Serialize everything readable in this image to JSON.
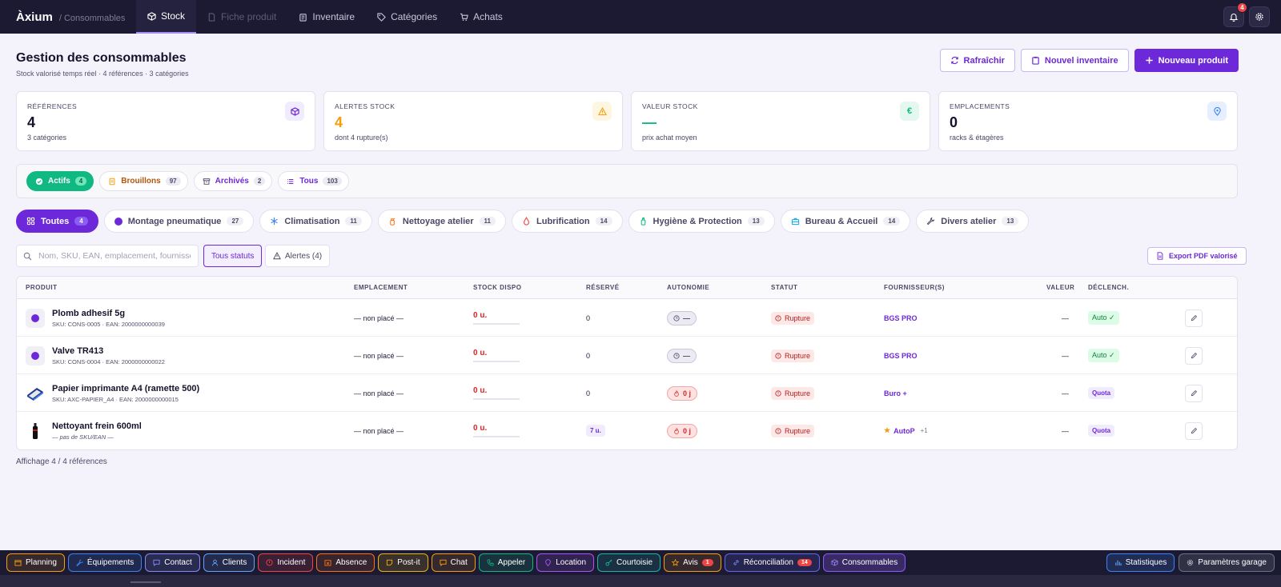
{
  "app": {
    "logo": "Àxium",
    "breadcrumb": "/ Consommables",
    "nav_tabs": [
      {
        "label": "Stock",
        "icon": "box-icon",
        "active": true
      },
      {
        "label": "Fiche produit",
        "icon": "document-icon",
        "disabled": true
      },
      {
        "label": "Inventaire",
        "icon": "clipboard-icon"
      },
      {
        "label": "Catégories",
        "icon": "tag-icon"
      },
      {
        "label": "Achats",
        "icon": "cart-icon"
      }
    ],
    "notification_count": "4"
  },
  "header": {
    "title": "Gestion des consommables",
    "subtitle": "Stock valorisé temps réel · 4 références · 3 catégories",
    "refresh_label": "Rafraîchir",
    "new_inventory_label": "Nouvel inventaire",
    "new_product_label": "Nouveau produit"
  },
  "kpis": [
    {
      "label": "RÉFÉRENCES",
      "value": "4",
      "sub": "3 catégories",
      "color": "#6d28d9",
      "icon": "cube-icon"
    },
    {
      "label": "ALERTES STOCK",
      "value": "4",
      "sub": "dont 4 rupture(s)",
      "color": "#f59e0b",
      "icon": "warning-icon"
    },
    {
      "label": "VALEUR STOCK",
      "value": "—",
      "sub": "prix achat moyen",
      "color": "#10b981",
      "icon": "euro-icon"
    },
    {
      "label": "EMPLACEMENTS",
      "value": "0",
      "sub": "racks & étagères",
      "color": "#3b82f6",
      "icon": "location-icon"
    }
  ],
  "status_tabs": [
    {
      "label": "Actifs",
      "count": "4",
      "active": true
    },
    {
      "label": "Brouillons",
      "count": "97",
      "color": "#b45309"
    },
    {
      "label": "Archivés",
      "count": "2",
      "color": "#4b4865"
    },
    {
      "label": "Tous",
      "count": "103",
      "color": "#6d28d9"
    }
  ],
  "categories": [
    {
      "label": "Toutes",
      "count": "4",
      "active": true
    },
    {
      "label": "Montage pneumatique",
      "count": "27"
    },
    {
      "label": "Climatisation",
      "count": "11"
    },
    {
      "label": "Nettoyage atelier",
      "count": "11"
    },
    {
      "label": "Lubrification",
      "count": "14"
    },
    {
      "label": "Hygiène & Protection",
      "count": "13"
    },
    {
      "label": "Bureau & Accueil",
      "count": "14"
    },
    {
      "label": "Divers atelier",
      "count": "13"
    }
  ],
  "filters": {
    "search_placeholder": "Nom, SKU, EAN, emplacement, fournisseur…",
    "all_statuses": "Tous statuts",
    "alerts": "Alertes (4)",
    "export": "Export PDF valorisé"
  },
  "table": {
    "columns": [
      "PRODUIT",
      "EMPLACEMENT",
      "STOCK DISPO",
      "RÉSERVÉ",
      "AUTONOMIE",
      "STATUT",
      "FOURNISSEUR(S)",
      "VALEUR",
      "DÉCLENCH."
    ],
    "rows": [
      {
        "name": "Plomb adhesif 5g",
        "sku": "SKU: CONS-0005 · EAN: 2000000000039",
        "thumb": "dot",
        "location": "— non placé —",
        "stock": "0 u.",
        "reserved": "0",
        "autonomy": "—",
        "autonomy_kind": "neutral",
        "status": "Rupture",
        "supplier": "BGS PRO",
        "supplier_more": "",
        "value": "—",
        "trigger": "Auto ✓",
        "trigger_kind": "auto"
      },
      {
        "name": "Valve TR413",
        "sku": "SKU: CONS-0004 · EAN: 2000000000022",
        "thumb": "dot",
        "location": "— non placé —",
        "stock": "0 u.",
        "reserved": "0",
        "autonomy": "—",
        "autonomy_kind": "neutral",
        "status": "Rupture",
        "supplier": "BGS PRO",
        "supplier_more": "",
        "value": "—",
        "trigger": "Auto ✓",
        "trigger_kind": "auto"
      },
      {
        "name": "Papier imprimante A4 (ramette 500)",
        "sku": "SKU: AXC-PAPIER_A4 · EAN: 2000000000015",
        "thumb": "paper",
        "location": "— non placé —",
        "stock": "0 u.",
        "reserved": "0",
        "autonomy": "0 j",
        "autonomy_kind": "danger",
        "status": "Rupture",
        "supplier": "Buro +",
        "supplier_more": "",
        "value": "—",
        "trigger": "Quota",
        "trigger_kind": "quota"
      },
      {
        "name": "Nettoyant frein 600ml",
        "sku": "— pas de SKU/EAN —",
        "thumb": "bottle",
        "location": "— non placé —",
        "stock": "0 u.",
        "reserved": "7 u.",
        "autonomy": "0 j",
        "autonomy_kind": "danger",
        "status": "Rupture",
        "supplier": "AutoP",
        "supplier_more": "+1",
        "value": "—",
        "trigger": "Quota",
        "trigger_kind": "quota"
      }
    ],
    "footer": "Affichage 4 / 4 références"
  },
  "bottom_bar": {
    "items": [
      {
        "label": "Planning",
        "color": "#f59e0b"
      },
      {
        "label": "Équipements",
        "color": "#3b82f6"
      },
      {
        "label": "Contact",
        "color": "#818cf8"
      },
      {
        "label": "Clients",
        "color": "#60a5fa"
      },
      {
        "label": "Incident",
        "color": "#ef4444"
      },
      {
        "label": "Absence",
        "color": "#f97316"
      },
      {
        "label": "Post-it",
        "color": "#eab308"
      },
      {
        "label": "Chat",
        "color": "#f59e0b"
      },
      {
        "label": "Appeler",
        "color": "#10b981"
      },
      {
        "label": "Location",
        "color": "#a855f7"
      },
      {
        "label": "Courtoisie",
        "color": "#14b8a6"
      },
      {
        "label": "Avis",
        "color": "#f59e0b",
        "count": "1"
      },
      {
        "label": "Réconciliation",
        "color": "#6366f1",
        "count": "14"
      },
      {
        "label": "Consommables",
        "color": "#8b5cf6"
      }
    ],
    "right": [
      {
        "label": "Statistiques",
        "color": "#3b82f6"
      },
      {
        "label": "Paramètres garage",
        "color": "#6b7280"
      }
    ]
  }
}
